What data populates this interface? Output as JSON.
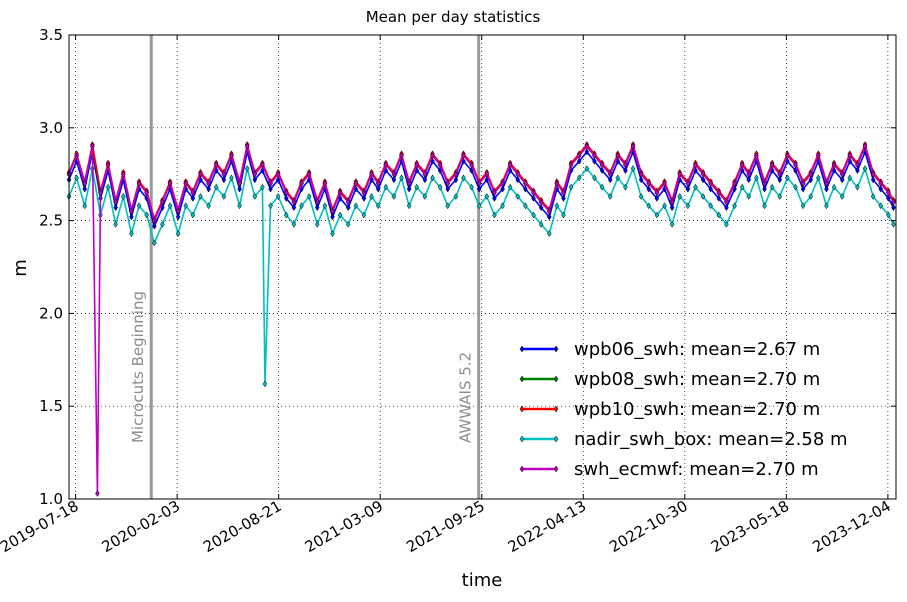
{
  "chart_data": {
    "type": "line",
    "title": "Mean per day statistics",
    "xlabel": "time",
    "ylabel": "m",
    "ylim": [
      1.0,
      3.5
    ],
    "xlim": [
      "2019-07-05",
      "2023-12-20"
    ],
    "grid": true,
    "legend_position": "lower-right",
    "x_ticks": [
      "2019-07-18",
      "2020-02-03",
      "2020-08-21",
      "2021-03-09",
      "2021-09-25",
      "2022-04-13",
      "2022-10-30",
      "2023-05-18",
      "2023-12-04"
    ],
    "y_ticks": [
      "1.0",
      "1.5",
      "2.0",
      "2.5",
      "3.0",
      "3.5"
    ],
    "vertical_lines": [
      {
        "date": "2019-12-14",
        "label": "Microcuts Beginning"
      },
      {
        "date": "2021-09-19",
        "label": "AWWAIS 5.2"
      }
    ],
    "series": [
      {
        "name": "wpb06_swh: mean=2.67 m",
        "color": "#0000ff",
        "offset": -0.03
      },
      {
        "name": "wpb08_swh: mean=2.70 m",
        "color": "#008000",
        "offset": 0.0
      },
      {
        "name": "wpb10_swh: mean=2.70 m",
        "color": "#ff0000",
        "offset": 0.01
      },
      {
        "name": "nadir_swh_box: mean=2.58 m",
        "color": "#00bfbf",
        "offset": -0.12
      },
      {
        "name": "swh_ecmwf: mean=2.70 m",
        "color": "#bf00bf",
        "offset": 0.0
      }
    ],
    "base_series": {
      "x": [
        "2019-07-05",
        "2019-07-20",
        "2019-08-05",
        "2019-08-20",
        "2019-09-05",
        "2019-09-20",
        "2019-10-05",
        "2019-10-20",
        "2019-11-05",
        "2019-11-20",
        "2019-12-05",
        "2019-12-20",
        "2020-01-05",
        "2020-01-20",
        "2020-02-05",
        "2020-02-20",
        "2020-03-05",
        "2020-03-20",
        "2020-04-05",
        "2020-04-20",
        "2020-05-05",
        "2020-05-20",
        "2020-06-05",
        "2020-06-20",
        "2020-07-05",
        "2020-07-20",
        "2020-08-05",
        "2020-08-20",
        "2020-09-05",
        "2020-09-20",
        "2020-10-05",
        "2020-10-20",
        "2020-11-05",
        "2020-11-20",
        "2020-12-05",
        "2020-12-20",
        "2021-01-05",
        "2021-01-20",
        "2021-02-05",
        "2021-02-20",
        "2021-03-05",
        "2021-03-20",
        "2021-04-05",
        "2021-04-20",
        "2021-05-05",
        "2021-05-20",
        "2021-06-05",
        "2021-06-20",
        "2021-07-05",
        "2021-07-20",
        "2021-08-05",
        "2021-08-20",
        "2021-09-05",
        "2021-09-20",
        "2021-10-05",
        "2021-10-20",
        "2021-11-05",
        "2021-11-20",
        "2021-12-05",
        "2021-12-20",
        "2022-01-05",
        "2022-01-20",
        "2022-02-05",
        "2022-02-20",
        "2022-03-05",
        "2022-03-20",
        "2022-04-05",
        "2022-04-20",
        "2022-05-05",
        "2022-05-20",
        "2022-06-05",
        "2022-06-20",
        "2022-07-05",
        "2022-07-20",
        "2022-08-05",
        "2022-08-20",
        "2022-09-05",
        "2022-09-20",
        "2022-10-05",
        "2022-10-20",
        "2022-11-05",
        "2022-11-20",
        "2022-12-05",
        "2022-12-20",
        "2023-01-05",
        "2023-01-20",
        "2023-02-05",
        "2023-02-20",
        "2023-03-05",
        "2023-03-20",
        "2023-04-05",
        "2023-04-20",
        "2023-05-05",
        "2023-05-20",
        "2023-06-05",
        "2023-06-20",
        "2023-07-05",
        "2023-07-20",
        "2023-08-05",
        "2023-08-20",
        "2023-09-05",
        "2023-09-20",
        "2023-10-05",
        "2023-10-20",
        "2023-11-05",
        "2023-11-20",
        "2023-12-05",
        "2023-12-15"
      ],
      "y": [
        2.75,
        2.85,
        2.7,
        2.9,
        2.65,
        2.8,
        2.6,
        2.75,
        2.55,
        2.7,
        2.65,
        2.5,
        2.6,
        2.7,
        2.55,
        2.7,
        2.65,
        2.75,
        2.7,
        2.8,
        2.75,
        2.85,
        2.7,
        2.9,
        2.75,
        2.8,
        2.7,
        2.75,
        2.65,
        2.6,
        2.7,
        2.75,
        2.6,
        2.7,
        2.55,
        2.65,
        2.6,
        2.7,
        2.65,
        2.75,
        2.7,
        2.8,
        2.75,
        2.85,
        2.7,
        2.8,
        2.75,
        2.85,
        2.8,
        2.7,
        2.75,
        2.85,
        2.8,
        2.7,
        2.75,
        2.65,
        2.7,
        2.8,
        2.75,
        2.7,
        2.65,
        2.6,
        2.55,
        2.7,
        2.65,
        2.8,
        2.85,
        2.9,
        2.85,
        2.8,
        2.75,
        2.85,
        2.8,
        2.9,
        2.75,
        2.7,
        2.65,
        2.7,
        2.6,
        2.75,
        2.7,
        2.8,
        2.75,
        2.7,
        2.65,
        2.6,
        2.7,
        2.8,
        2.75,
        2.85,
        2.7,
        2.8,
        2.75,
        2.85,
        2.8,
        2.7,
        2.75,
        2.85,
        2.7,
        2.8,
        2.75,
        2.85,
        2.8,
        2.9,
        2.75,
        2.7,
        2.65,
        2.6
      ]
    },
    "outliers": [
      {
        "series": "swh_ecmwf: mean=2.70 m",
        "x": "2019-08-30",
        "y": 1.03
      },
      {
        "series": "nadir_swh_box: mean=2.58 m",
        "x": "2020-07-25",
        "y": 1.62
      }
    ]
  }
}
